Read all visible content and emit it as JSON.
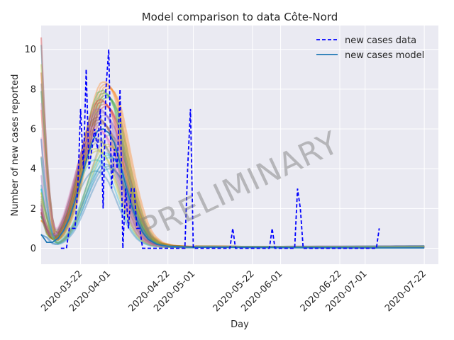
{
  "chart_data": {
    "type": "line",
    "title": "Model comparison to data Côte-Nord",
    "xlabel": "Day",
    "ylabel": "Number of new cases reported",
    "x_range": [
      "2020-03-08",
      "2020-07-27"
    ],
    "ylim": [
      -0.8,
      11.2
    ],
    "y_ticks": [
      0,
      2,
      4,
      6,
      8,
      10
    ],
    "x_ticks": [
      "2020-03-22",
      "2020-04-01",
      "2020-04-22",
      "2020-05-01",
      "2020-05-22",
      "2020-06-01",
      "2020-06-22",
      "2020-07-01",
      "2020-07-22"
    ],
    "grid": true,
    "legend_position": "top-right",
    "watermark": "PRELIMINARY",
    "series": [
      {
        "name": "new cases data",
        "style": "dashed",
        "color": "#0000ff",
        "points": [
          [
            "2020-03-15",
            0
          ],
          [
            "2020-03-16",
            0
          ],
          [
            "2020-03-17",
            0
          ],
          [
            "2020-03-18",
            1
          ],
          [
            "2020-03-19",
            1
          ],
          [
            "2020-03-20",
            1
          ],
          [
            "2020-03-21",
            3
          ],
          [
            "2020-03-22",
            7
          ],
          [
            "2020-03-23",
            4
          ],
          [
            "2020-03-24",
            9
          ],
          [
            "2020-03-25",
            4
          ],
          [
            "2020-03-26",
            5
          ],
          [
            "2020-03-27",
            6
          ],
          [
            "2020-03-28",
            5
          ],
          [
            "2020-03-29",
            7
          ],
          [
            "2020-03-30",
            2
          ],
          [
            "2020-03-31",
            8
          ],
          [
            "2020-04-01",
            10
          ],
          [
            "2020-04-02",
            3
          ],
          [
            "2020-04-03",
            5
          ],
          [
            "2020-04-04",
            4
          ],
          [
            "2020-04-05",
            8
          ],
          [
            "2020-04-06",
            0
          ],
          [
            "2020-04-07",
            3
          ],
          [
            "2020-04-08",
            1
          ],
          [
            "2020-04-09",
            3
          ],
          [
            "2020-04-10",
            3
          ],
          [
            "2020-04-11",
            1
          ],
          [
            "2020-04-12",
            1
          ],
          [
            "2020-04-13",
            0
          ],
          [
            "2020-04-20",
            0
          ],
          [
            "2020-04-28",
            0
          ],
          [
            "2020-04-29",
            4
          ],
          [
            "2020-04-30",
            7
          ],
          [
            "2020-05-01",
            0
          ],
          [
            "2020-05-14",
            0
          ],
          [
            "2020-05-15",
            1
          ],
          [
            "2020-05-16",
            0
          ],
          [
            "2020-05-28",
            0
          ],
          [
            "2020-05-29",
            1
          ],
          [
            "2020-05-30",
            0
          ],
          [
            "2020-06-06",
            0
          ],
          [
            "2020-06-07",
            3
          ],
          [
            "2020-06-08",
            2
          ],
          [
            "2020-06-09",
            0
          ],
          [
            "2020-07-05",
            0
          ],
          [
            "2020-07-06",
            1
          ]
        ]
      },
      {
        "name": "new cases model",
        "style": "solid",
        "color": "#1f77b4",
        "points": [
          [
            "2020-03-08",
            0.7
          ],
          [
            "2020-03-10",
            0.3
          ],
          [
            "2020-03-12",
            0.3
          ],
          [
            "2020-03-14",
            0.5
          ],
          [
            "2020-03-16",
            0.9
          ],
          [
            "2020-03-18",
            1.5
          ],
          [
            "2020-03-20",
            2.4
          ],
          [
            "2020-03-22",
            3.4
          ],
          [
            "2020-03-24",
            4.4
          ],
          [
            "2020-03-26",
            5.3
          ],
          [
            "2020-03-28",
            5.9
          ],
          [
            "2020-03-30",
            6.0
          ],
          [
            "2020-04-01",
            5.8
          ],
          [
            "2020-04-03",
            5.3
          ],
          [
            "2020-04-05",
            4.3
          ],
          [
            "2020-04-07",
            3.2
          ],
          [
            "2020-04-09",
            2.2
          ],
          [
            "2020-04-11",
            1.4
          ],
          [
            "2020-04-13",
            0.8
          ],
          [
            "2020-04-15",
            0.45
          ],
          [
            "2020-04-18",
            0.2
          ],
          [
            "2020-04-22",
            0.1
          ],
          [
            "2020-05-01",
            0.05
          ],
          [
            "2020-06-01",
            0.03
          ],
          [
            "2020-07-01",
            0.02
          ],
          [
            "2020-07-22",
            0.02
          ]
        ]
      }
    ],
    "ensemble_colors": [
      "#1f77b4",
      "#ff7f0e",
      "#2ca02c",
      "#d62728",
      "#9467bd",
      "#8c564b",
      "#e377c2",
      "#7f7f7f",
      "#bcbd22",
      "#17becf"
    ]
  }
}
